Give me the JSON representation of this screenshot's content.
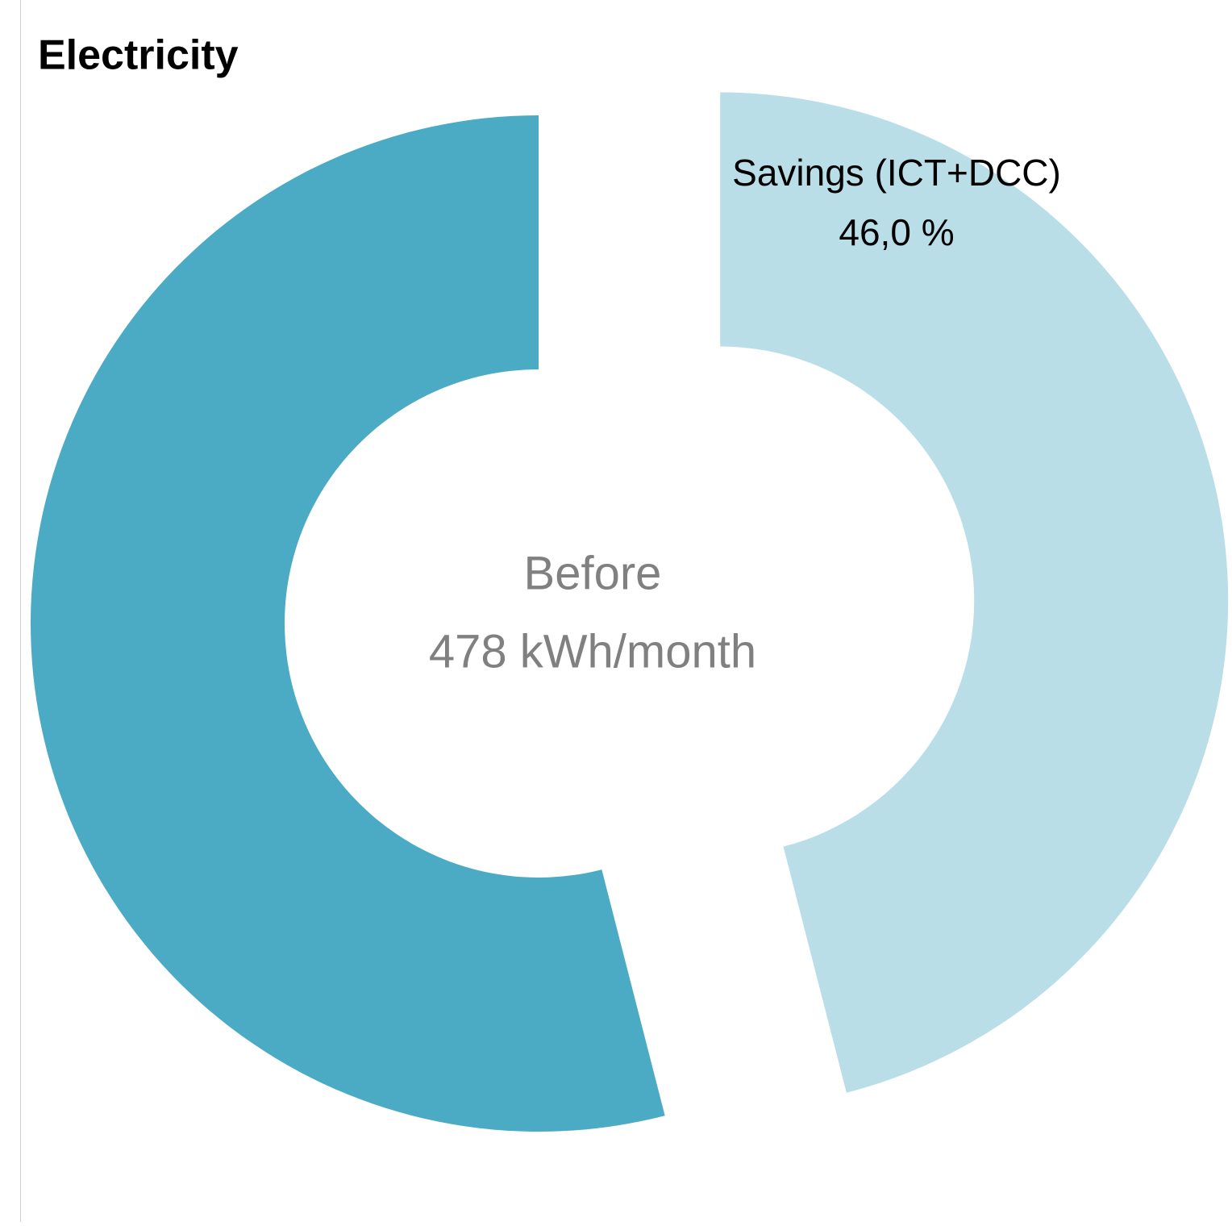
{
  "chart_data": {
    "type": "pie",
    "title": "Electricity",
    "categories": [
      "Savings (ICT+DCC)",
      null
    ],
    "values": [
      46.0,
      54
    ],
    "value_labels": [
      "46,0 %",
      null
    ],
    "colors": [
      "#b9dee7",
      "#4babc5"
    ],
    "annotations": [
      "Before",
      "478 kWh/month"
    ]
  }
}
